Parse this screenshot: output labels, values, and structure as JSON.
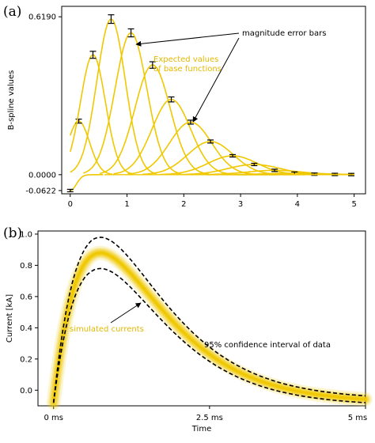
{
  "chart_data": [
    {
      "panel_label": "(a)",
      "type": "line",
      "ylabel": "B-spline values",
      "xlim": [
        -0.15,
        5.2
      ],
      "ylim": [
        -0.075,
        0.66
      ],
      "x_ticks": [
        "0",
        "1",
        "2",
        "3",
        "4",
        "5"
      ],
      "y_ticks": [
        "-0.0622",
        "0.0000",
        "0.6190"
      ],
      "line_color": "#f0c800",
      "peaks": [
        {
          "x": 0.0,
          "y": -0.0622
        },
        {
          "x": 0.15,
          "y": 0.21
        },
        {
          "x": 0.4,
          "y": 0.47
        },
        {
          "x": 0.72,
          "y": 0.61
        },
        {
          "x": 1.07,
          "y": 0.556
        },
        {
          "x": 1.45,
          "y": 0.43
        },
        {
          "x": 1.78,
          "y": 0.295
        },
        {
          "x": 2.12,
          "y": 0.206
        },
        {
          "x": 2.47,
          "y": 0.13
        },
        {
          "x": 2.86,
          "y": 0.074
        },
        {
          "x": 3.24,
          "y": 0.04
        },
        {
          "x": 3.6,
          "y": 0.017
        },
        {
          "x": 3.95,
          "y": 0.006
        },
        {
          "x": 4.3,
          "y": 0.002
        },
        {
          "x": 4.66,
          "y": 0.001
        },
        {
          "x": 4.95,
          "y": 0.0005
        }
      ],
      "annotations": {
        "error_bars": "magnitude error bars",
        "expected_1": "Expected values",
        "expected_2": "of base functions"
      }
    },
    {
      "panel_label": "(b)",
      "type": "line",
      "xlabel": "Time",
      "ylabel": "Current [kA]",
      "xlim": [
        -0.25,
        5.0
      ],
      "ylim": [
        -0.1,
        1.02
      ],
      "x_ticks": [
        "0 ms",
        "2.5 ms",
        "5 ms"
      ],
      "y_ticks": [
        "0.0",
        "0.2",
        "0.4",
        "0.6",
        "0.8",
        "1.0"
      ],
      "band_color": "#f0c800",
      "series": [
        {
          "name": "simulated currents",
          "x": [
            0,
            0.25,
            0.5,
            0.75,
            1.0,
            1.5,
            2.0,
            2.5,
            3.0,
            3.5,
            4.0,
            4.5,
            5.0
          ],
          "values": [
            -0.08,
            0.7,
            0.87,
            0.885,
            0.86,
            0.7,
            0.5,
            0.33,
            0.21,
            0.12,
            0.07,
            0.03,
            0.01
          ]
        },
        {
          "name": "95% confidence interval of data",
          "x": [
            0,
            0.25,
            0.5,
            0.75,
            1.0,
            1.5,
            2.0,
            2.5,
            3.0,
            3.5,
            4.0,
            4.5,
            5.0
          ],
          "values": [
            -0.06,
            0.82,
            0.96,
            0.99,
            0.96,
            0.8,
            0.6,
            0.42,
            0.28,
            0.17,
            0.1,
            0.05,
            0.03
          ]
        },
        {
          "x": [
            0,
            0.25,
            0.5,
            0.75,
            1.0,
            1.5,
            2.0,
            2.5,
            3.0,
            3.5,
            4.0,
            4.5,
            5.0
          ],
          "values": [
            -0.1,
            0.6,
            0.77,
            0.8,
            0.77,
            0.6,
            0.41,
            0.26,
            0.15,
            0.08,
            0.04,
            0.01,
            -0.01
          ]
        }
      ],
      "annotations": {
        "simulated": "simulated currents",
        "confidence": "95% confidence interval of data"
      }
    }
  ]
}
